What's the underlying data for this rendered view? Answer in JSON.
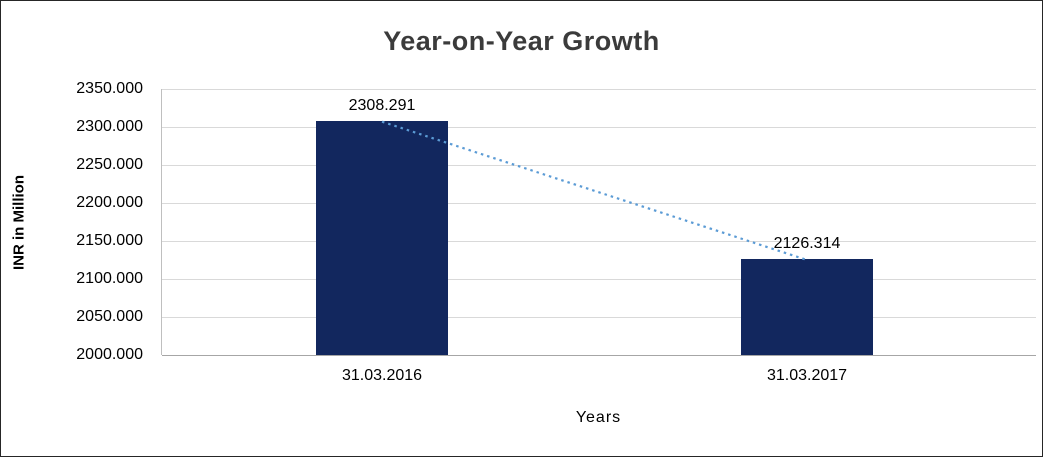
{
  "chart_data": {
    "type": "bar",
    "title": "Year-on-Year Growth",
    "xlabel": "Years",
    "ylabel": "INR in Million",
    "categories": [
      "31.03.2016",
      "31.03.2017"
    ],
    "values": [
      2308.291,
      2126.314
    ],
    "value_labels": [
      "2308.291",
      "2126.314"
    ],
    "ylim": [
      2000,
      2350
    ],
    "ytick_labels": [
      "2000.000",
      "2050.000",
      "2100.000",
      "2150.000",
      "2200.000",
      "2250.000",
      "2300.000",
      "2350.000"
    ],
    "grid": true,
    "legend": "none",
    "has_trendline": true,
    "colors": {
      "bar": "#12275E",
      "trendline": "#5B9BD5",
      "gridline": "#D9D9D9",
      "title_text": "#3B3B3B",
      "axis_text": "#000000"
    }
  }
}
